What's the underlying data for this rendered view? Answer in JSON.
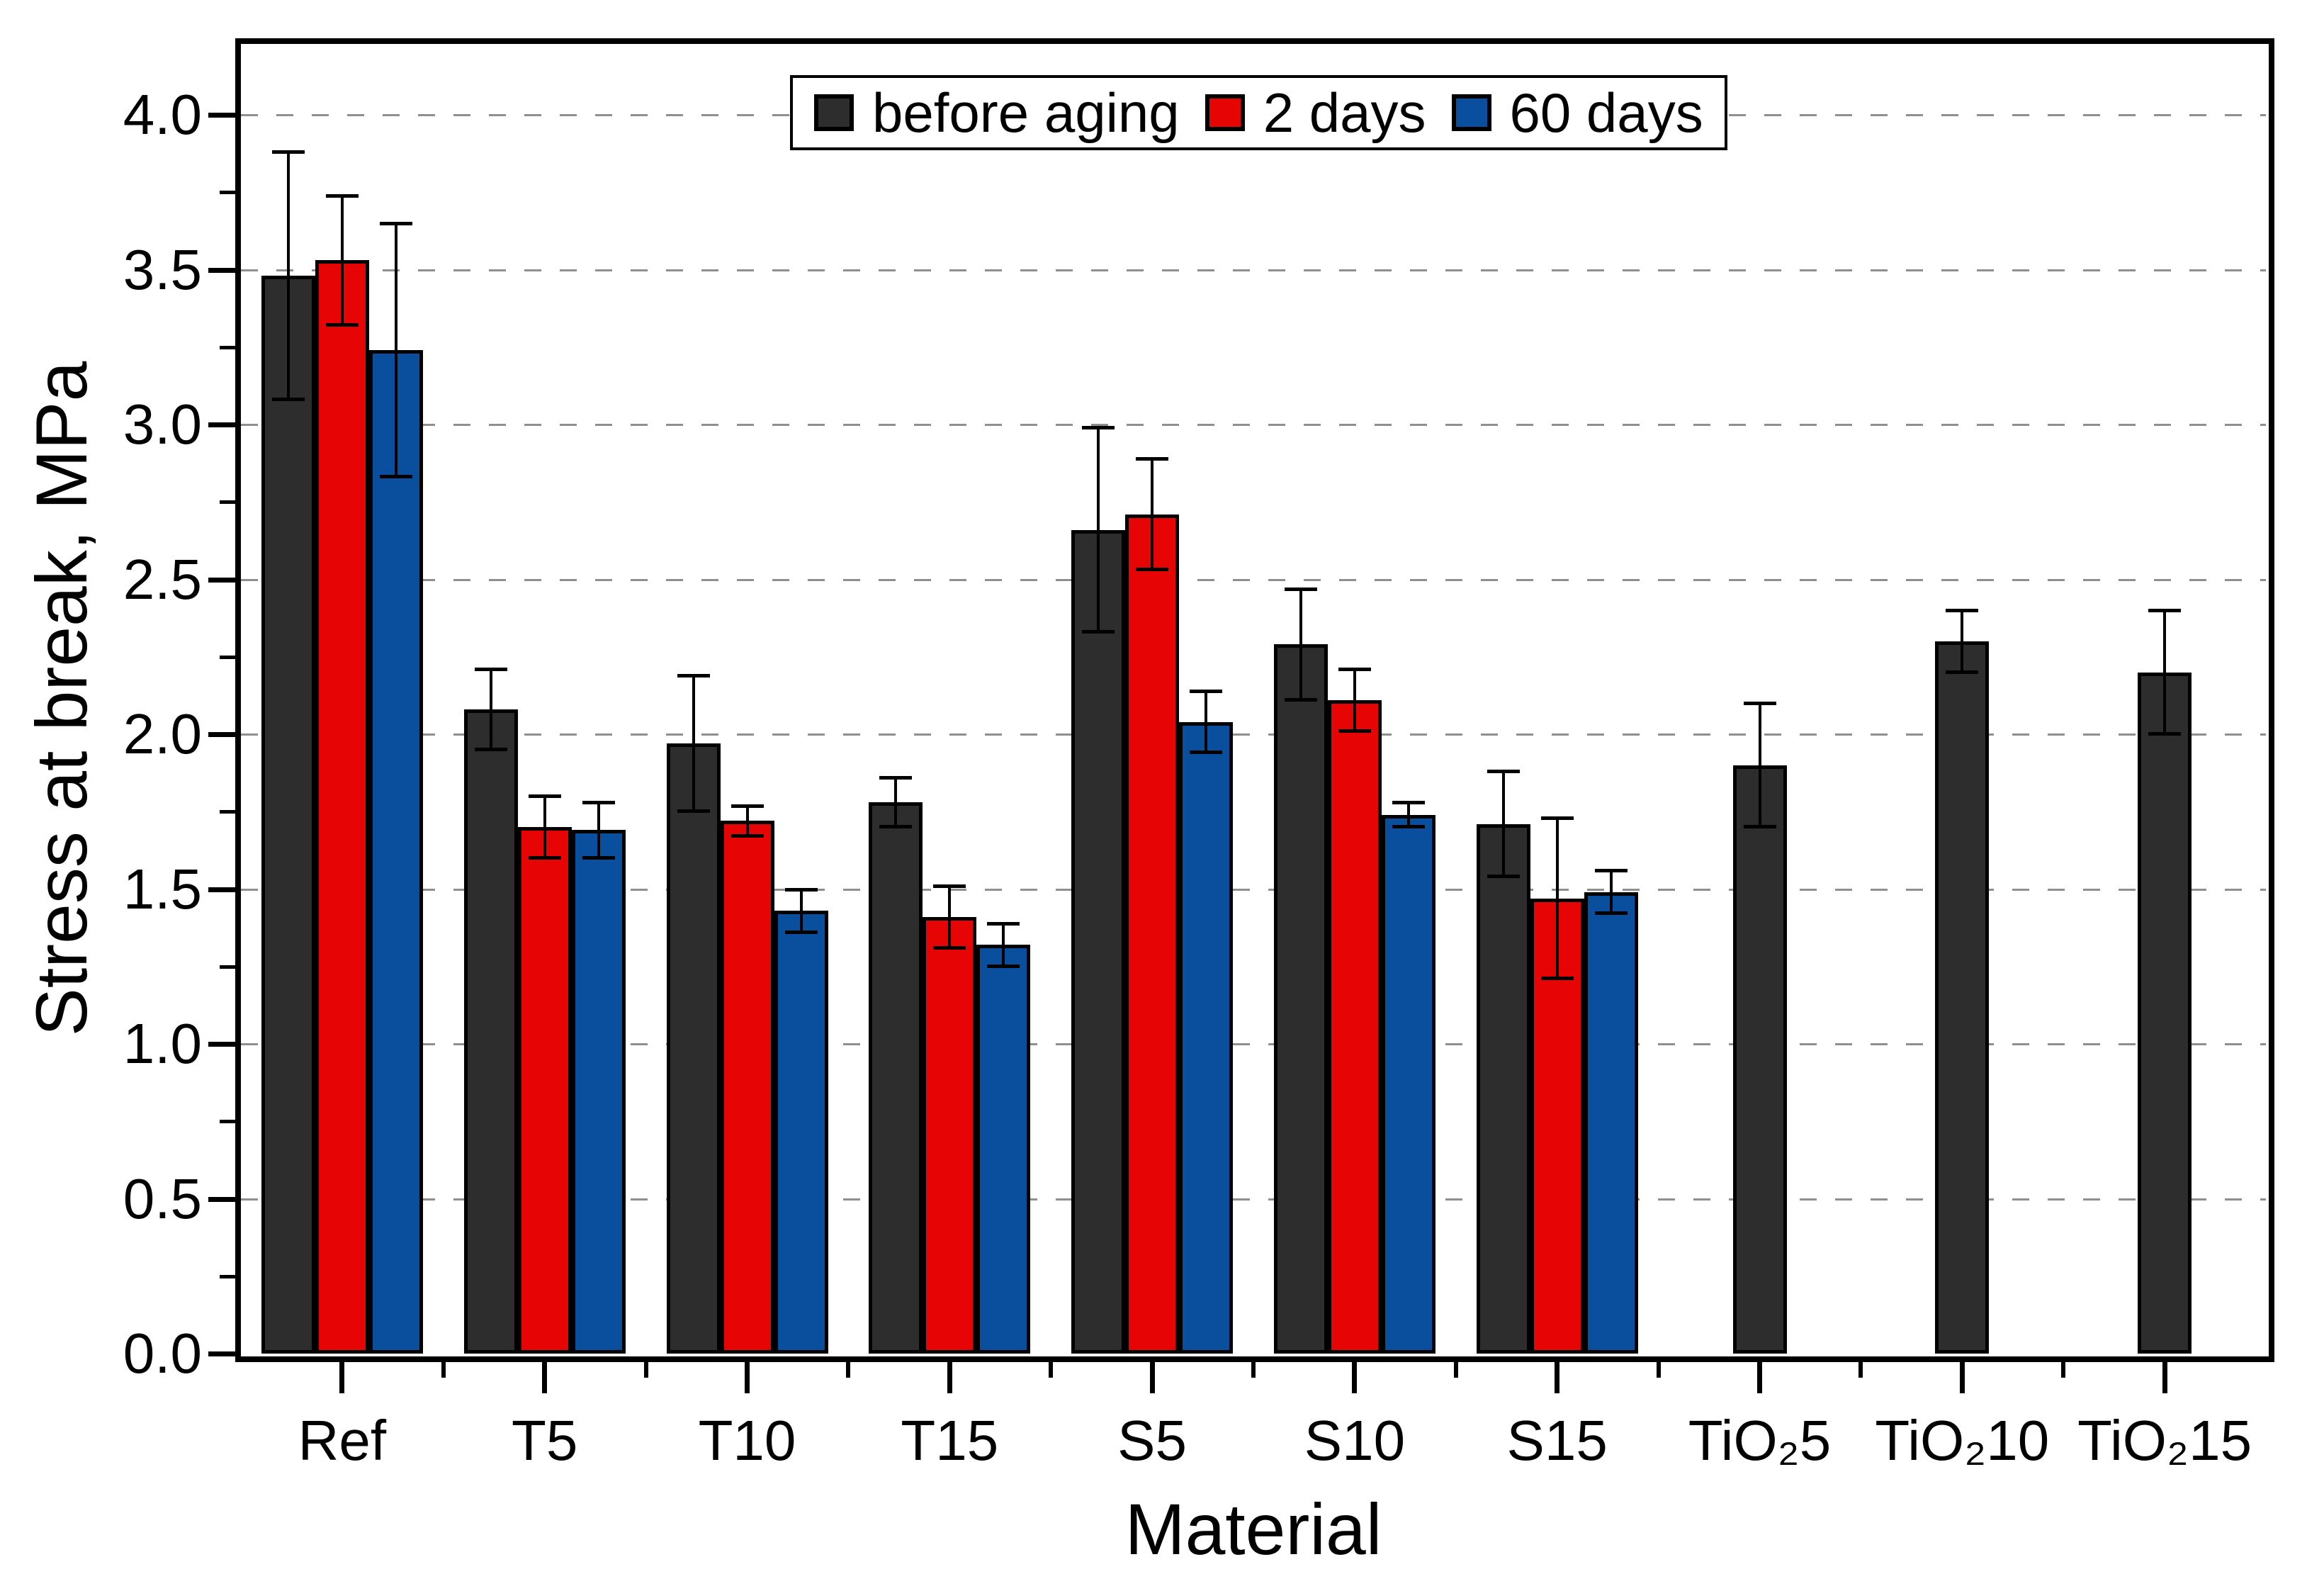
{
  "chart_data": {
    "type": "bar",
    "title": "",
    "xlabel": "Material",
    "ylabel": "Stress at break, MPa",
    "categories": [
      "Ref",
      "T5",
      "T10",
      "T15",
      "S5",
      "S10",
      "S15",
      "TiO₂5",
      "TiO₂10",
      "TiO₂15"
    ],
    "ylim": [
      0,
      4.23
    ],
    "ytick_labels": [
      "0.0",
      "0.5",
      "1.0",
      "1.5",
      "2.0",
      "2.5",
      "3.0",
      "3.5",
      "4.0"
    ],
    "grid": "horizontal dashed gridlines at 0.5 steps",
    "legend_position": "top-center-inside",
    "gridline_color": "#8f8f8f",
    "frame_color": "#000000",
    "series": [
      {
        "name": "before aging",
        "color": "#2d2d2d",
        "values": [
          3.48,
          2.08,
          1.97,
          1.78,
          2.66,
          2.29,
          1.71,
          1.9,
          2.3,
          2.2
        ],
        "errors": [
          0.4,
          0.13,
          0.22,
          0.08,
          0.33,
          0.18,
          0.17,
          0.2,
          0.1,
          0.2
        ]
      },
      {
        "name": "2 days",
        "color": "#e60404",
        "values": [
          3.53,
          1.7,
          1.72,
          1.41,
          2.71,
          2.11,
          1.47,
          null,
          null,
          null
        ],
        "errors": [
          0.21,
          0.1,
          0.05,
          0.1,
          0.18,
          0.1,
          0.26,
          null,
          null,
          null
        ]
      },
      {
        "name": "60 days",
        "color": "#0a4e9e",
        "values": [
          3.24,
          1.69,
          1.43,
          1.32,
          2.04,
          1.74,
          1.49,
          null,
          null,
          null
        ],
        "errors": [
          0.41,
          0.09,
          0.07,
          0.07,
          0.1,
          0.04,
          0.07,
          null,
          null,
          null
        ]
      }
    ]
  }
}
